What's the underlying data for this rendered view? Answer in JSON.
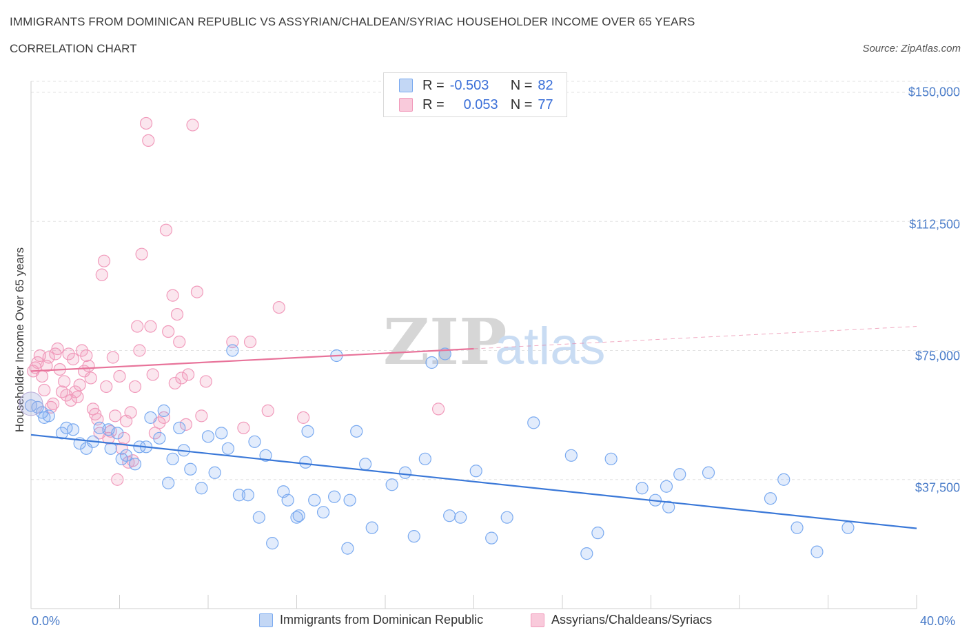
{
  "header": {
    "title": "IMMIGRANTS FROM DOMINICAN REPUBLIC VS ASSYRIAN/CHALDEAN/SYRIAC HOUSEHOLDER INCOME OVER 65 YEARS",
    "subtitle": "CORRELATION CHART",
    "source": "Source: ZipAtlas.com"
  },
  "colors": {
    "blue": "#7aaaf0",
    "blue_line": "#3a78d8",
    "pink": "#f19abb",
    "pink_line": "#e8739a",
    "tick_text": "#4a7cc9"
  },
  "legend": {
    "rows": [
      {
        "r_label": "R =",
        "r_value": "-0.503",
        "n_label": "N =",
        "n_value": "82"
      },
      {
        "r_label": "R =",
        "r_value": "0.053",
        "n_label": "N =",
        "n_value": "77"
      }
    ]
  },
  "watermark": {
    "zip": "ZIP",
    "atlas": "atlas"
  },
  "chart_data": {
    "type": "scatter",
    "xlabel": "",
    "ylabel": "Householder Income Over 65 years",
    "xlim": [
      0,
      40
    ],
    "ylim": [
      0,
      150000
    ],
    "x_tick_labels": [
      "0.0%",
      "40.0%"
    ],
    "y_ticks": [
      37500,
      75000,
      112500,
      150000
    ],
    "y_tick_labels": [
      "$37,500",
      "$75,000",
      "$112,500",
      "$150,000"
    ],
    "grid": "horizontal dashed",
    "legend_position": "top-center",
    "series": [
      {
        "name": "Immigrants from Dominican Republic",
        "color": "#7aaaf0",
        "trend": {
          "x": [
            0,
            40
          ],
          "y": [
            50500,
            23300
          ]
        },
        "points": [
          [
            0.0,
            59000
          ],
          [
            0.3,
            58500
          ],
          [
            0.5,
            57000
          ],
          [
            0.6,
            55500
          ],
          [
            0.8,
            56000
          ],
          [
            1.4,
            51000
          ],
          [
            1.6,
            52500
          ],
          [
            1.9,
            52000
          ],
          [
            2.2,
            48000
          ],
          [
            2.5,
            46500
          ],
          [
            2.8,
            48500
          ],
          [
            3.1,
            52500
          ],
          [
            3.5,
            52000
          ],
          [
            3.6,
            46500
          ],
          [
            3.9,
            51000
          ],
          [
            4.1,
            43500
          ],
          [
            4.3,
            44500
          ],
          [
            4.7,
            42000
          ],
          [
            4.9,
            47000
          ],
          [
            5.2,
            47000
          ],
          [
            5.4,
            55500
          ],
          [
            5.8,
            49500
          ],
          [
            6.0,
            57500
          ],
          [
            6.2,
            36500
          ],
          [
            6.4,
            43500
          ],
          [
            6.7,
            52500
          ],
          [
            6.9,
            46000
          ],
          [
            7.2,
            40500
          ],
          [
            7.7,
            35000
          ],
          [
            8.0,
            50000
          ],
          [
            8.3,
            39500
          ],
          [
            8.6,
            51000
          ],
          [
            8.9,
            46500
          ],
          [
            9.1,
            75000
          ],
          [
            9.4,
            33000
          ],
          [
            9.8,
            33000
          ],
          [
            10.1,
            48500
          ],
          [
            10.3,
            26500
          ],
          [
            10.6,
            44500
          ],
          [
            10.9,
            19000
          ],
          [
            11.4,
            34000
          ],
          [
            11.6,
            31500
          ],
          [
            12.0,
            26500
          ],
          [
            12.1,
            27000
          ],
          [
            12.4,
            42500
          ],
          [
            12.5,
            51500
          ],
          [
            12.8,
            31500
          ],
          [
            13.2,
            28000
          ],
          [
            13.7,
            32500
          ],
          [
            13.8,
            73500
          ],
          [
            14.3,
            17500
          ],
          [
            14.4,
            31500
          ],
          [
            14.7,
            51500
          ],
          [
            15.1,
            42000
          ],
          [
            15.4,
            23500
          ],
          [
            16.3,
            36000
          ],
          [
            16.9,
            39500
          ],
          [
            17.3,
            21000
          ],
          [
            17.8,
            43500
          ],
          [
            18.1,
            71500
          ],
          [
            18.7,
            74000
          ],
          [
            18.9,
            27000
          ],
          [
            19.4,
            26500
          ],
          [
            20.1,
            40000
          ],
          [
            20.8,
            20500
          ],
          [
            21.5,
            26500
          ],
          [
            22.7,
            54000
          ],
          [
            24.4,
            44500
          ],
          [
            25.1,
            16000
          ],
          [
            25.6,
            22000
          ],
          [
            26.2,
            43500
          ],
          [
            27.6,
            35000
          ],
          [
            28.2,
            31500
          ],
          [
            28.7,
            35500
          ],
          [
            28.8,
            29500
          ],
          [
            29.3,
            39000
          ],
          [
            30.6,
            39500
          ],
          [
            33.4,
            32000
          ],
          [
            34.0,
            37500
          ],
          [
            34.6,
            23500
          ],
          [
            35.5,
            16500
          ],
          [
            36.9,
            23500
          ]
        ]
      },
      {
        "name": "Assyrians/Chaldeans/Syriacs",
        "color": "#f19abb",
        "trend": {
          "x": [
            0,
            20
          ],
          "y": [
            69000,
            75500
          ],
          "dashed_to": {
            "x": 40,
            "y": 82000
          }
        },
        "points": [
          [
            0.1,
            69000
          ],
          [
            0.2,
            70000
          ],
          [
            0.3,
            71500
          ],
          [
            0.4,
            73500
          ],
          [
            0.5,
            67500
          ],
          [
            0.6,
            63500
          ],
          [
            0.7,
            70500
          ],
          [
            0.8,
            73000
          ],
          [
            0.9,
            58500
          ],
          [
            1.0,
            59500
          ],
          [
            1.1,
            74000
          ],
          [
            1.2,
            75500
          ],
          [
            1.3,
            69500
          ],
          [
            1.4,
            63000
          ],
          [
            1.5,
            66000
          ],
          [
            1.6,
            62000
          ],
          [
            1.7,
            74000
          ],
          [
            1.8,
            60500
          ],
          [
            1.9,
            72500
          ],
          [
            2.0,
            63000
          ],
          [
            2.1,
            61500
          ],
          [
            2.2,
            65000
          ],
          [
            2.3,
            75000
          ],
          [
            2.4,
            69000
          ],
          [
            2.5,
            73500
          ],
          [
            2.6,
            70500
          ],
          [
            2.7,
            67000
          ],
          [
            2.8,
            58000
          ],
          [
            2.9,
            56500
          ],
          [
            3.0,
            55000
          ],
          [
            3.1,
            51000
          ],
          [
            3.2,
            97000
          ],
          [
            3.3,
            101000
          ],
          [
            3.4,
            64500
          ],
          [
            3.5,
            49500
          ],
          [
            3.6,
            51500
          ],
          [
            3.7,
            73000
          ],
          [
            3.8,
            56000
          ],
          [
            3.9,
            37500
          ],
          [
            4.0,
            67500
          ],
          [
            4.1,
            46500
          ],
          [
            4.2,
            49500
          ],
          [
            4.3,
            54500
          ],
          [
            4.4,
            42500
          ],
          [
            4.5,
            57000
          ],
          [
            4.6,
            43000
          ],
          [
            4.7,
            64500
          ],
          [
            4.8,
            82000
          ],
          [
            4.9,
            75000
          ],
          [
            5.0,
            103000
          ],
          [
            5.2,
            141000
          ],
          [
            5.3,
            136000
          ],
          [
            5.4,
            82000
          ],
          [
            5.5,
            68000
          ],
          [
            5.6,
            51000
          ],
          [
            5.8,
            54000
          ],
          [
            6.0,
            55500
          ],
          [
            6.1,
            110000
          ],
          [
            6.2,
            80500
          ],
          [
            6.4,
            91000
          ],
          [
            6.5,
            65500
          ],
          [
            6.6,
            85500
          ],
          [
            6.7,
            77500
          ],
          [
            6.8,
            67000
          ],
          [
            7.0,
            53500
          ],
          [
            7.1,
            68000
          ],
          [
            7.3,
            140500
          ],
          [
            7.5,
            92000
          ],
          [
            7.7,
            56000
          ],
          [
            7.9,
            66000
          ],
          [
            9.1,
            77500
          ],
          [
            9.6,
            52500
          ],
          [
            9.9,
            77500
          ],
          [
            10.7,
            57500
          ],
          [
            11.2,
            87500
          ],
          [
            12.3,
            55500
          ],
          [
            18.4,
            58000
          ]
        ]
      }
    ]
  },
  "bottom_legend": {
    "series1": "Immigrants from Dominican Republic",
    "series2": "Assyrians/Chaldeans/Syriacs"
  }
}
